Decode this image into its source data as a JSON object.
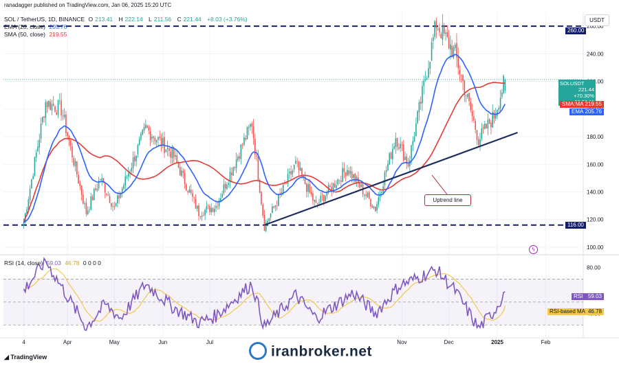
{
  "header": {
    "credit": "ranadagger published on TradingView.com, Jan 06, 2025 15:20 UTC",
    "symbol_line": "SOL / TetherUS, 1D, BINANCE",
    "ohlc": [
      {
        "label": "O",
        "value": "213.41"
      },
      {
        "label": "H",
        "value": "222.14"
      },
      {
        "label": "L",
        "value": "211.56"
      },
      {
        "label": "C",
        "value": "221.44"
      },
      {
        "label": "",
        "value": "+8.03 (+3.76%)"
      }
    ],
    "ema_label": "EMA (20, close)",
    "ema_value": "205.76",
    "sma_label": "SMA (50, close)",
    "sma_value": "219.55",
    "rsi_label": "RSI (14, close)",
    "rsi_value": "59.03",
    "rsi_ma_value": "46.78",
    "rsi_zeros": "0 0 0 0"
  },
  "currency_button": "USDT",
  "price_tags": {
    "level_260": "260.00",
    "symbol": "SOLUSDT",
    "price": "221.44",
    "change": "+70.30%",
    "countdown": "08:39:11",
    "sma_tag": "SMA:MA",
    "sma_value": "219.55",
    "ema_tag": "EMA",
    "ema_value": "205.76",
    "level_116": "116.00",
    "rsi_tag": "RSI",
    "rsi_value": "59.03",
    "rsi_ma_tag": "RSI-based MA",
    "rsi_ma_value": "46.78"
  },
  "annotation": "Uptrend line",
  "watermark": "iranbroker.net",
  "tv_brand": "TradingView",
  "colors": {
    "up": "#26a69a",
    "down": "#ef5350",
    "ema": "#2962ff",
    "sma": "#e53935",
    "rsi": "#7e57c2",
    "rsi_ma": "#f2c94c",
    "level": "#131d6b",
    "trend": "#1e2d5c"
  },
  "chart_data": {
    "type": "candlestick",
    "symbol": "SOL / TetherUS",
    "interval": "1D",
    "exchange": "BINANCE",
    "x_ticks": [
      "4",
      "Apr",
      "May",
      "Jun",
      "Jul",
      "Nov",
      "Dec",
      "2025",
      "Feb"
    ],
    "y_ticks": [
      "100.00",
      "120.00",
      "140.00",
      "160.00",
      "180.00",
      "200.00",
      "220.00",
      "240.00",
      "260.00"
    ],
    "ylim": [
      95,
      270
    ],
    "horizontal_levels": [
      260.0,
      116.0
    ],
    "trendline": {
      "label": "Uptrend line",
      "from": {
        "date": "2024-08-05",
        "price": 116
      },
      "to": {
        "date": "2025-01-14",
        "price": 183
      }
    },
    "price_anchors": [
      {
        "date": "2024-03-04",
        "price": 118
      },
      {
        "date": "2024-03-18",
        "price": 205
      },
      {
        "date": "2024-03-28",
        "price": 200
      },
      {
        "date": "2024-04-13",
        "price": 125
      },
      {
        "date": "2024-04-22",
        "price": 150
      },
      {
        "date": "2024-05-01",
        "price": 128
      },
      {
        "date": "2024-05-21",
        "price": 186
      },
      {
        "date": "2024-06-07",
        "price": 168
      },
      {
        "date": "2024-06-24",
        "price": 125
      },
      {
        "date": "2024-07-05",
        "price": 130
      },
      {
        "date": "2024-07-28",
        "price": 190
      },
      {
        "date": "2024-08-05",
        "price": 115
      },
      {
        "date": "2024-08-25",
        "price": 160
      },
      {
        "date": "2024-09-07",
        "price": 130
      },
      {
        "date": "2024-09-27",
        "price": 157
      },
      {
        "date": "2024-10-15",
        "price": 128
      },
      {
        "date": "2024-10-28",
        "price": 180
      },
      {
        "date": "2024-11-05",
        "price": 160
      },
      {
        "date": "2024-11-23",
        "price": 262
      },
      {
        "date": "2024-12-05",
        "price": 240
      },
      {
        "date": "2024-12-20",
        "price": 178
      },
      {
        "date": "2024-12-30",
        "price": 195
      },
      {
        "date": "2025-01-06",
        "price": 221.44
      }
    ],
    "last": {
      "open": 213.41,
      "high": 222.14,
      "low": 211.56,
      "close": 221.44,
      "change": 8.03,
      "change_pct": 3.76
    },
    "ema20_last": 205.76,
    "sma50_last": 219.55,
    "rsi": {
      "period": 14,
      "ylim": [
        20,
        90
      ],
      "y_ticks": [
        "40.00",
        "80.00"
      ],
      "bands": [
        70,
        50,
        30
      ],
      "last": 59.03,
      "ma_last": 46.78,
      "anchors": [
        {
          "date": "2024-03-04",
          "value": 60
        },
        {
          "date": "2024-03-18",
          "value": 86
        },
        {
          "date": "2024-04-13",
          "value": 28
        },
        {
          "date": "2024-04-25",
          "value": 48
        },
        {
          "date": "2024-05-05",
          "value": 36
        },
        {
          "date": "2024-05-21",
          "value": 66
        },
        {
          "date": "2024-06-07",
          "value": 46
        },
        {
          "date": "2024-06-24",
          "value": 32
        },
        {
          "date": "2024-07-05",
          "value": 38
        },
        {
          "date": "2024-07-28",
          "value": 66
        },
        {
          "date": "2024-08-05",
          "value": 28
        },
        {
          "date": "2024-08-25",
          "value": 56
        },
        {
          "date": "2024-09-07",
          "value": 36
        },
        {
          "date": "2024-10-01",
          "value": 58
        },
        {
          "date": "2024-10-15",
          "value": 40
        },
        {
          "date": "2024-10-30",
          "value": 64
        },
        {
          "date": "2024-11-23",
          "value": 78
        },
        {
          "date": "2024-12-05",
          "value": 60
        },
        {
          "date": "2024-12-20",
          "value": 27
        },
        {
          "date": "2024-12-30",
          "value": 42
        },
        {
          "date": "2025-01-06",
          "value": 59
        }
      ]
    }
  }
}
